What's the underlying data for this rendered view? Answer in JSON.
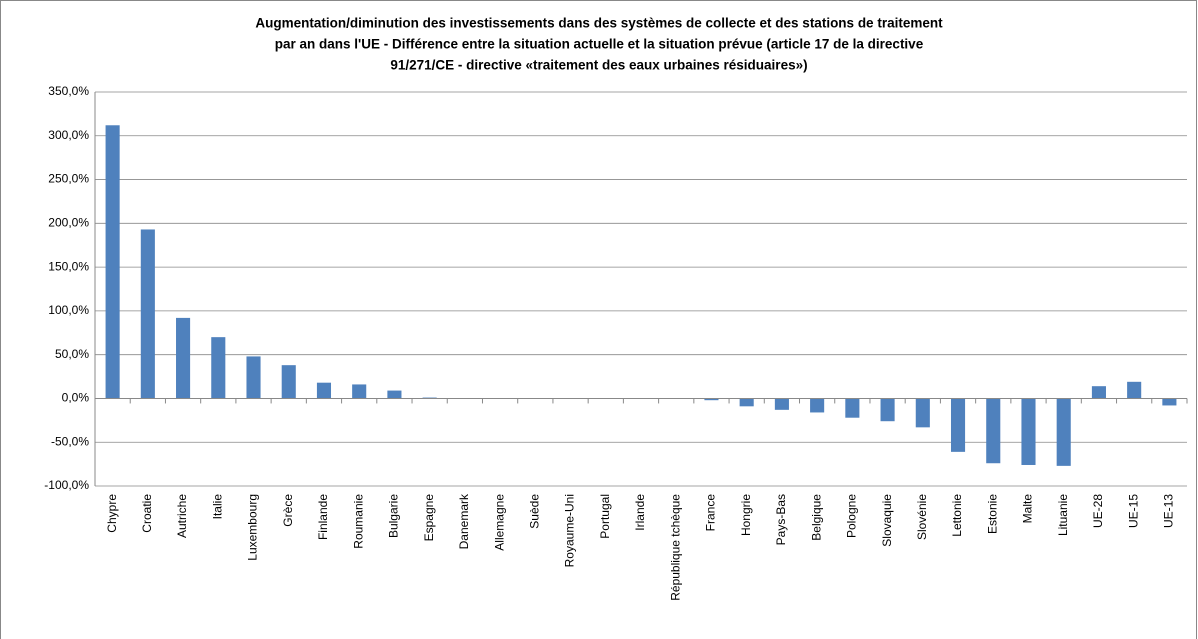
{
  "chart_data": {
    "type": "bar",
    "title": [
      "Augmentation/diminution des investissements dans des systèmes de collecte et des stations de traitement",
      "par an dans l'UE - Différence entre la situation actuelle et la situation prévue (article 17 de la directive",
      "91/271/CE - directive «traitement des eaux urbaines résiduaires»)"
    ],
    "categories": [
      "Chypre",
      "Croatie",
      "Autriche",
      "Italie",
      "Luxembourg",
      "Grèce",
      "Finlande",
      "Roumanie",
      "Bulgarie",
      "Espagne",
      "Danemark",
      "Allemagne",
      "Suède",
      "Royaume-Uni",
      "Portugal",
      "Irlande",
      "République tchèque",
      "France",
      "Hongrie",
      "Pays-Bas",
      "Belgique",
      "Pologne",
      "Slovaquie",
      "Slovénie",
      "Lettonie",
      "Estonie",
      "Malte",
      "Lituanie",
      "UE-28",
      "UE-15",
      "UE-13"
    ],
    "values": [
      312,
      193,
      92,
      70,
      48,
      38,
      18,
      16,
      9,
      1,
      0,
      0,
      0,
      0,
      0,
      0,
      0,
      -2,
      -9,
      -13,
      -16,
      -22,
      -26,
      -33,
      -61,
      -74,
      -76,
      -77,
      14,
      19,
      -8
    ],
    "color": "#4f81bd",
    "ylim": [
      -100,
      350
    ],
    "yticks": [
      {
        "value": -100,
        "label": "-100,0%"
      },
      {
        "value": -50,
        "label": "-50,0%"
      },
      {
        "value": 0,
        "label": "0,0%"
      },
      {
        "value": 50,
        "label": "50,0%"
      },
      {
        "value": 100,
        "label": "100,0%"
      },
      {
        "value": 150,
        "label": "150,0%"
      },
      {
        "value": 200,
        "label": "200,0%"
      },
      {
        "value": 250,
        "label": "250,0%"
      },
      {
        "value": 300,
        "label": "300,0%"
      },
      {
        "value": 350,
        "label": "350,0%"
      }
    ],
    "grid": true
  }
}
